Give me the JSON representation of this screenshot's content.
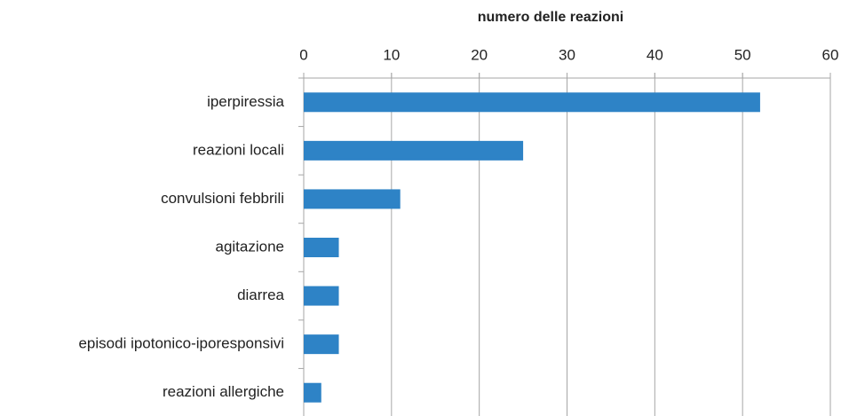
{
  "chart_data": {
    "type": "bar",
    "orientation": "horizontal",
    "x_axis_label": "numero delle reazioni",
    "categories": [
      "iperpiressia",
      "reazioni locali",
      "convulsioni febbrili",
      "agitazione",
      "diarrea",
      "episodi ipotonico-iporesponsivi",
      "reazioni allergiche"
    ],
    "values": [
      52,
      25,
      11,
      4,
      4,
      4,
      2
    ],
    "color": "#2e83c6",
    "xlim": [
      0,
      60
    ],
    "xticks": [
      0,
      10,
      20,
      30,
      40,
      50,
      60
    ],
    "grid": true
  }
}
